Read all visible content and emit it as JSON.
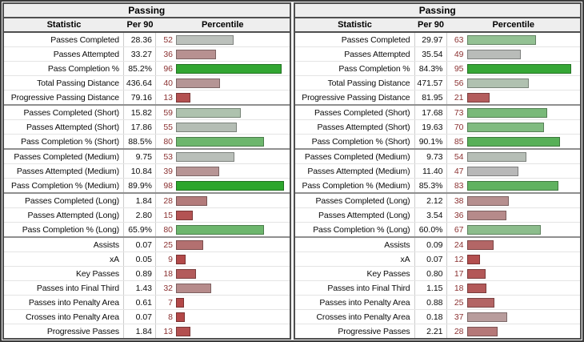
{
  "percentile_number_color": "#8b3232",
  "chart_data": [
    {
      "type": "table",
      "title": "Passing",
      "columns": {
        "statistic": "Statistic",
        "per90": "Per 90",
        "percentile": "Percentile"
      },
      "rows": [
        {
          "stat": "Passes Completed",
          "per90": "28.36",
          "percentile": 52,
          "bar_color": "#bcc1bc",
          "group_start": false
        },
        {
          "stat": "Passes Attempted",
          "per90": "33.27",
          "percentile": 36,
          "bar_color": "#b79191",
          "group_start": false
        },
        {
          "stat": "Pass Completion %",
          "per90": "85.2%",
          "percentile": 96,
          "bar_color": "#32a632",
          "group_start": false
        },
        {
          "stat": "Total Passing Distance",
          "per90": "436.64",
          "percentile": 40,
          "bar_color": "#b59595",
          "group_start": false
        },
        {
          "stat": "Progressive Passing Distance",
          "per90": "79.16",
          "percentile": 13,
          "bar_color": "#b35050",
          "group_start": false
        },
        {
          "stat": "Passes Completed (Short)",
          "per90": "15.82",
          "percentile": 59,
          "bar_color": "#aec2ae",
          "group_start": true
        },
        {
          "stat": "Passes Attempted (Short)",
          "per90": "17.86",
          "percentile": 55,
          "bar_color": "#b4bdb4",
          "group_start": false
        },
        {
          "stat": "Pass Completion % (Short)",
          "per90": "88.5%",
          "percentile": 80,
          "bar_color": "#6db66d",
          "group_start": false
        },
        {
          "stat": "Passes Completed (Medium)",
          "per90": "9.75",
          "percentile": 53,
          "bar_color": "#b9bfb9",
          "group_start": true
        },
        {
          "stat": "Passes Attempted (Medium)",
          "per90": "10.84",
          "percentile": 39,
          "bar_color": "#b79595",
          "group_start": false
        },
        {
          "stat": "Pass Completion % (Medium)",
          "per90": "89.9%",
          "percentile": 98,
          "bar_color": "#2da62d",
          "group_start": false
        },
        {
          "stat": "Passes Completed (Long)",
          "per90": "1.84",
          "percentile": 28,
          "bar_color": "#b37b7b",
          "group_start": true
        },
        {
          "stat": "Passes Attempted (Long)",
          "per90": "2.80",
          "percentile": 15,
          "bar_color": "#b35353",
          "group_start": false
        },
        {
          "stat": "Pass Completion % (Long)",
          "per90": "65.9%",
          "percentile": 80,
          "bar_color": "#6db66d",
          "group_start": false
        },
        {
          "stat": "Assists",
          "per90": "0.07",
          "percentile": 25,
          "bar_color": "#b37070",
          "group_start": true
        },
        {
          "stat": "xA",
          "per90": "0.05",
          "percentile": 9,
          "bar_color": "#b34a4a",
          "group_start": false
        },
        {
          "stat": "Key Passes",
          "per90": "0.89",
          "percentile": 18,
          "bar_color": "#b35b5b",
          "group_start": false
        },
        {
          "stat": "Passes into Final Third",
          "per90": "1.43",
          "percentile": 32,
          "bar_color": "#b68b8b",
          "group_start": false
        },
        {
          "stat": "Passes into Penalty Area",
          "per90": "0.61",
          "percentile": 7,
          "bar_color": "#b34848",
          "group_start": false
        },
        {
          "stat": "Crosses into Penalty Area",
          "per90": "0.07",
          "percentile": 8,
          "bar_color": "#b34848",
          "group_start": false
        },
        {
          "stat": "Progressive Passes",
          "per90": "1.84",
          "percentile": 13,
          "bar_color": "#b35050",
          "group_start": false
        }
      ]
    },
    {
      "type": "table",
      "title": "Passing",
      "columns": {
        "statistic": "Statistic",
        "per90": "Per 90",
        "percentile": "Percentile"
      },
      "rows": [
        {
          "stat": "Passes Completed",
          "per90": "29.97",
          "percentile": 63,
          "bar_color": "#93c193",
          "group_start": false
        },
        {
          "stat": "Passes Attempted",
          "per90": "35.54",
          "percentile": 49,
          "bar_color": "#b9bcb9",
          "group_start": false
        },
        {
          "stat": "Pass Completion %",
          "per90": "84.3%",
          "percentile": 95,
          "bar_color": "#36a736",
          "group_start": false
        },
        {
          "stat": "Total Passing Distance",
          "per90": "471.57",
          "percentile": 56,
          "bar_color": "#b0c1b0",
          "group_start": false
        },
        {
          "stat": "Progressive Passing Distance",
          "per90": "81.95",
          "percentile": 21,
          "bar_color": "#b35c5c",
          "group_start": false
        },
        {
          "stat": "Passes Completed (Short)",
          "per90": "17.68",
          "percentile": 73,
          "bar_color": "#79b979",
          "group_start": true
        },
        {
          "stat": "Passes Attempted (Short)",
          "per90": "19.63",
          "percentile": 70,
          "bar_color": "#80bb80",
          "group_start": false
        },
        {
          "stat": "Pass Completion % (Short)",
          "per90": "90.1%",
          "percentile": 85,
          "bar_color": "#58b058",
          "group_start": false
        },
        {
          "stat": "Passes Completed (Medium)",
          "per90": "9.73",
          "percentile": 54,
          "bar_color": "#b6beb6",
          "group_start": true
        },
        {
          "stat": "Passes Attempted (Medium)",
          "per90": "11.40",
          "percentile": 47,
          "bar_color": "#b8b8b8",
          "group_start": false
        },
        {
          "stat": "Pass Completion % (Medium)",
          "per90": "85.3%",
          "percentile": 83,
          "bar_color": "#60b260",
          "group_start": false
        },
        {
          "stat": "Passes Completed (Long)",
          "per90": "2.12",
          "percentile": 38,
          "bar_color": "#b68f8f",
          "group_start": true
        },
        {
          "stat": "Passes Attempted (Long)",
          "per90": "3.54",
          "percentile": 36,
          "bar_color": "#b68a8a",
          "group_start": false
        },
        {
          "stat": "Pass Completion % (Long)",
          "per90": "60.0%",
          "percentile": 67,
          "bar_color": "#8cbd8c",
          "group_start": false
        },
        {
          "stat": "Assists",
          "per90": "0.09",
          "percentile": 24,
          "bar_color": "#b36666",
          "group_start": true
        },
        {
          "stat": "xA",
          "per90": "0.07",
          "percentile": 12,
          "bar_color": "#b34e4e",
          "group_start": false
        },
        {
          "stat": "Key Passes",
          "per90": "0.80",
          "percentile": 17,
          "bar_color": "#b35858",
          "group_start": false
        },
        {
          "stat": "Passes into Final Third",
          "per90": "1.15",
          "percentile": 18,
          "bar_color": "#b35959",
          "group_start": false
        },
        {
          "stat": "Passes into Penalty Area",
          "per90": "0.88",
          "percentile": 25,
          "bar_color": "#b36464",
          "group_start": false
        },
        {
          "stat": "Crosses into Penalty Area",
          "per90": "0.18",
          "percentile": 37,
          "bar_color": "#b89c9c",
          "group_start": false
        },
        {
          "stat": "Progressive Passes",
          "per90": "2.21",
          "percentile": 28,
          "bar_color": "#b57878",
          "group_start": false
        }
      ]
    }
  ]
}
